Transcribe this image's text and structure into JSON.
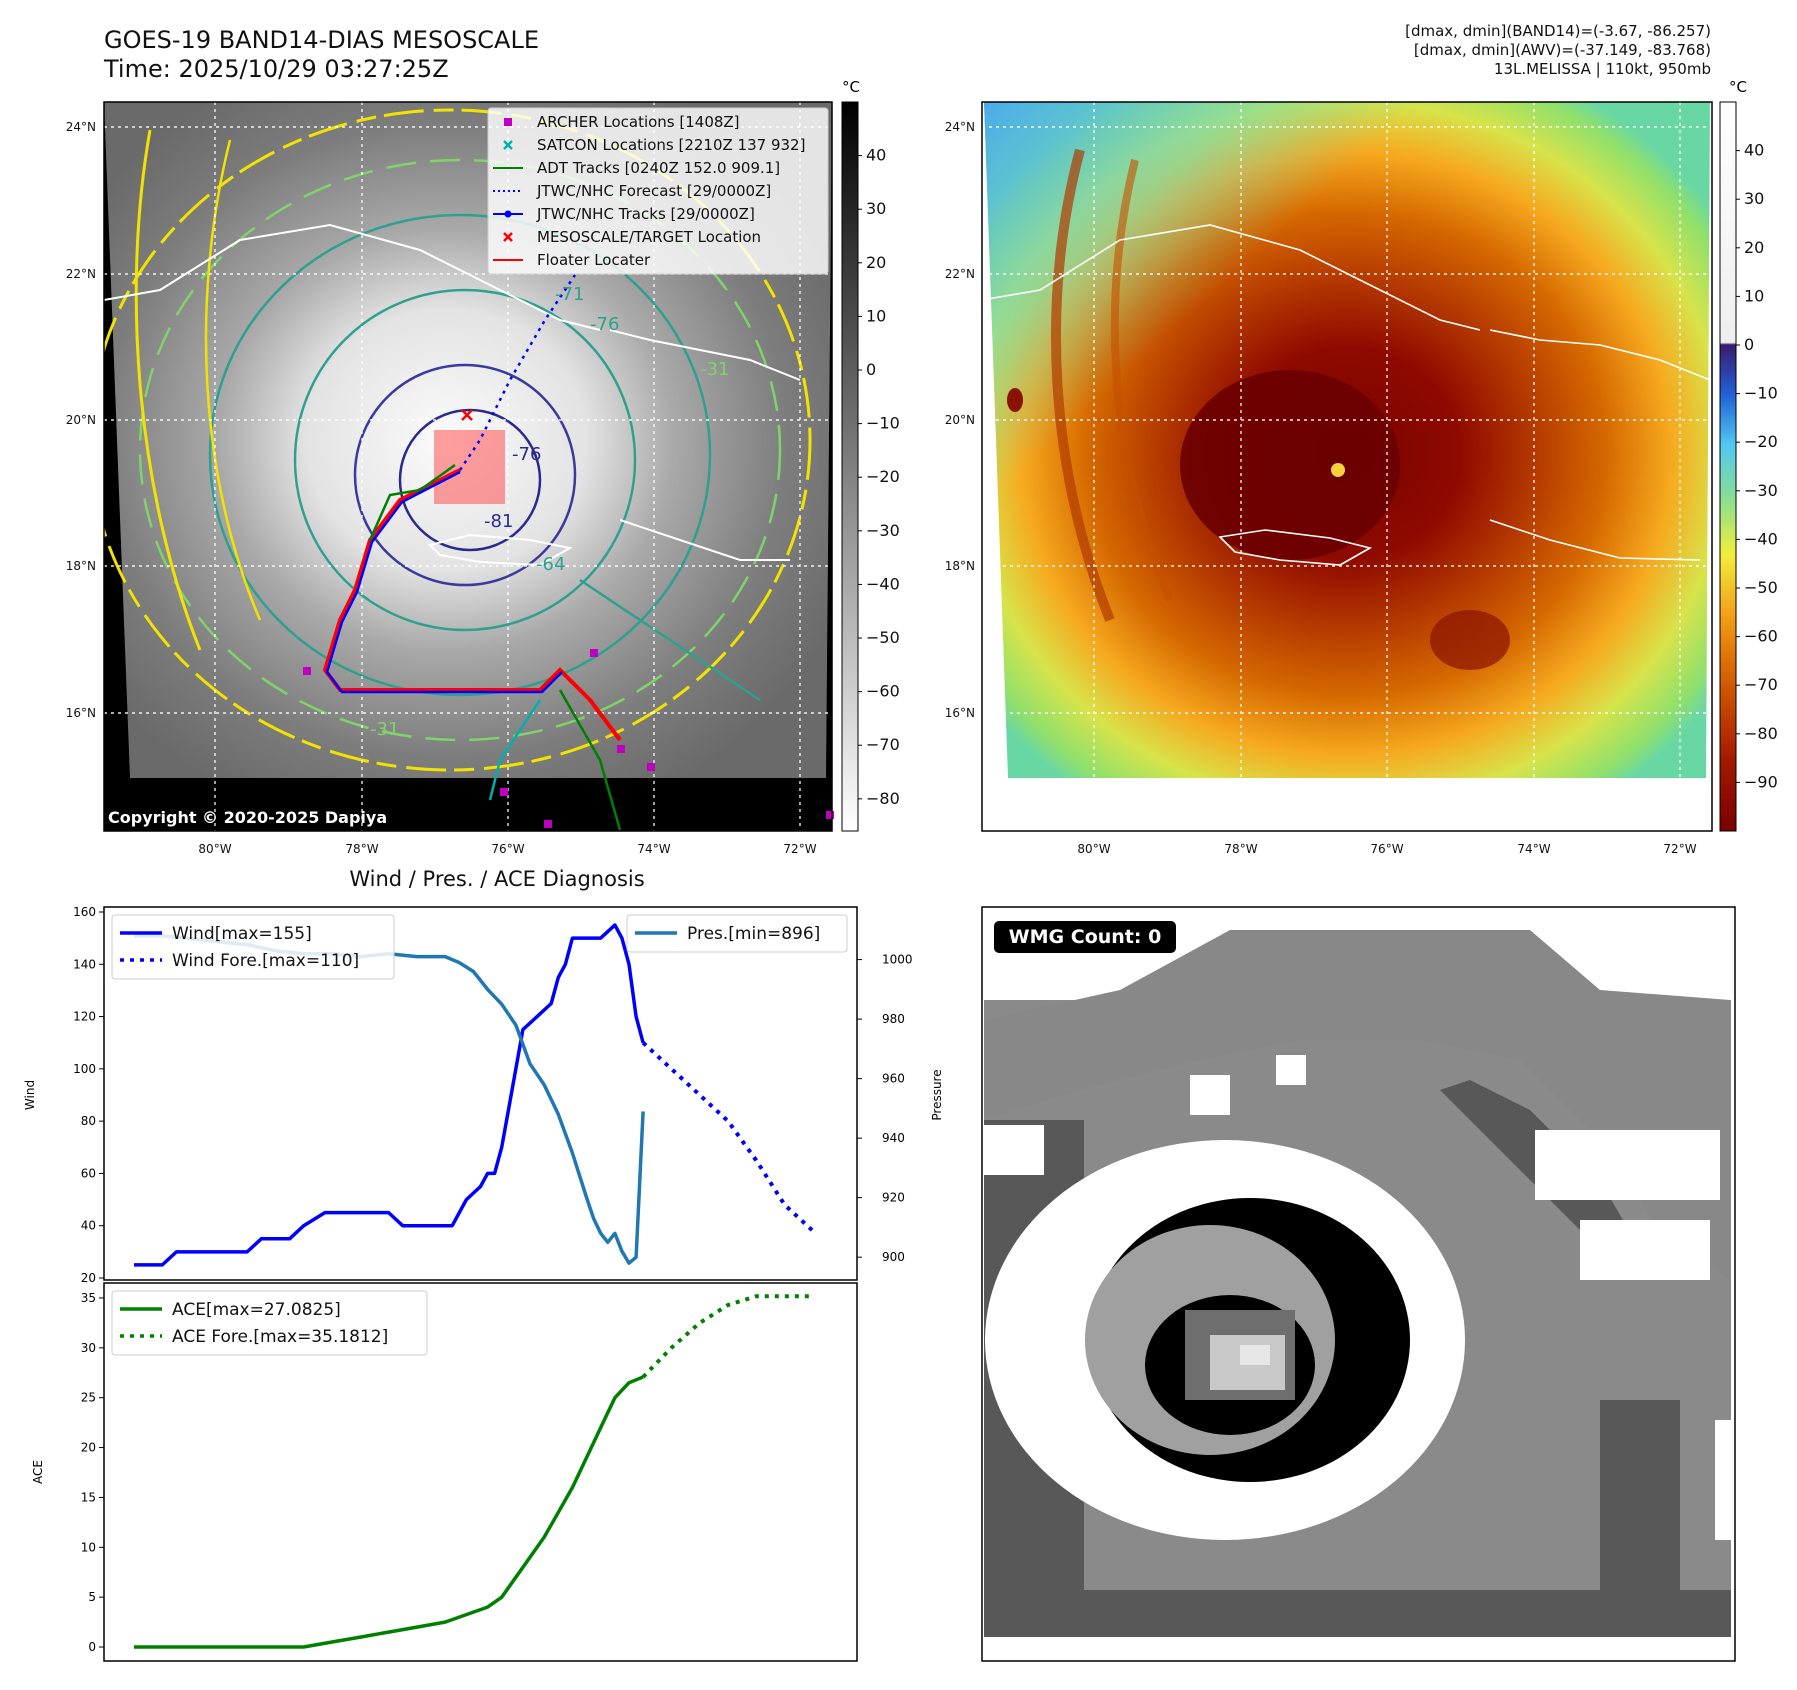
{
  "header": {
    "title_line1": "GOES-19 BAND14-DIAS MESOSCALE",
    "title_line2": "Time: 2025/10/29 03:27:25Z",
    "stats_line1": "[dmax, dmin](BAND14)=(-3.67, -86.257)",
    "stats_line2": "[dmax, dmin](AWV)=(-37.149, -83.768)",
    "stats_line3": "13L.MELISSA | 110kt, 950mb"
  },
  "ir_map": {
    "lat_labels": [
      "24°N",
      "22°N",
      "20°N",
      "18°N",
      "16°N"
    ],
    "lon_labels": [
      "80°W",
      "78°W",
      "76°W",
      "74°W",
      "72°W"
    ],
    "copyright": "Copyright © 2020-2025 Dapiya",
    "contour_labels": [
      "-76",
      "-81",
      "-76",
      "-64",
      "-31",
      "-31",
      "-71"
    ],
    "legend": [
      {
        "label": "ARCHER Locations [1408Z]",
        "color": "#c000c0",
        "marker": "square"
      },
      {
        "label": "SATCON Locations [2210Z 137 932]",
        "color": "#00b0b0",
        "marker": "x"
      },
      {
        "label": "ADT Tracks [0240Z 152.0 909.1]",
        "color": "#008000",
        "marker": "line"
      },
      {
        "label": "JTWC/NHC Forecast [29/0000Z]",
        "color": "#0000ff",
        "marker": "dotted"
      },
      {
        "label": "JTWC/NHC Tracks [29/0000Z]",
        "color": "#0000ff",
        "marker": "line-dot"
      },
      {
        "label": "MESOSCALE/TARGET Location",
        "color": "#ff0000",
        "marker": "x"
      },
      {
        "label": "Floater Locater",
        "color": "#ff0000",
        "marker": "line"
      }
    ],
    "colorbar_unit": "°C",
    "colorbar_ticks": [
      "40",
      "30",
      "20",
      "10",
      "0",
      "−10",
      "−20",
      "−30",
      "−40",
      "−50",
      "−60",
      "−70",
      "−80"
    ]
  },
  "wv_map": {
    "lat_labels": [
      "24°N",
      "22°N",
      "20°N",
      "18°N",
      "16°N"
    ],
    "lon_labels": [
      "80°W",
      "78°W",
      "76°W",
      "74°W",
      "72°W"
    ],
    "colorbar_unit": "°C",
    "colorbar_ticks": [
      "40",
      "30",
      "20",
      "10",
      "0",
      "−10",
      "−20",
      "−30",
      "−40",
      "−50",
      "−60",
      "−70",
      "−80",
      "−90"
    ]
  },
  "wmg": {
    "badge": "WMG Count: 0"
  },
  "chart_data": [
    {
      "type": "line",
      "title": "Wind / Pres. / ACE Diagnosis",
      "ylabel": "Wind",
      "ylabel_right": "Pressure",
      "ylim": [
        20,
        160
      ],
      "ylim_right": [
        893,
        1016
      ],
      "yticks": [
        20,
        40,
        60,
        80,
        100,
        120,
        140,
        160
      ],
      "yticks_right": [
        900,
        920,
        940,
        960,
        980,
        1000
      ],
      "xlim": [
        0,
        98
      ],
      "series": [
        {
          "name": "Wind[max=155]",
          "axis": "left",
          "color": "#0000ff",
          "style": "solid",
          "x": [
            0,
            4,
            6,
            10,
            16,
            18,
            22,
            24,
            27,
            29,
            32,
            36,
            38,
            40,
            43,
            45,
            47,
            49,
            50,
            51,
            52,
            53,
            55,
            57,
            59,
            60,
            61,
            62,
            64,
            66,
            68,
            69,
            70,
            71,
            72
          ],
          "y": [
            25,
            25,
            30,
            30,
            30,
            35,
            35,
            40,
            45,
            45,
            45,
            45,
            40,
            40,
            40,
            40,
            50,
            55,
            60,
            60,
            70,
            85,
            115,
            120,
            125,
            135,
            140,
            150,
            150,
            150,
            155,
            150,
            140,
            120,
            110
          ]
        },
        {
          "name": "Wind Fore.[max=110]",
          "axis": "left",
          "color": "#0000ff",
          "style": "dotted",
          "x": [
            72,
            76,
            80,
            84,
            88,
            92,
            96
          ],
          "y": [
            110,
            100,
            90,
            80,
            65,
            48,
            38
          ]
        },
        {
          "name": "Pres.[min=896]",
          "axis": "right",
          "color": "#1f77b4",
          "style": "solid",
          "x": [
            0,
            4,
            8,
            12,
            16,
            20,
            24,
            28,
            32,
            36,
            40,
            44,
            46,
            48,
            50,
            52,
            54,
            56,
            58,
            60,
            62,
            64,
            65,
            66,
            67,
            68,
            69,
            70,
            71,
            72
          ],
          "y": [
            1008,
            1008,
            1007,
            1006,
            1005,
            1003,
            1002,
            1002,
            1001,
            1002,
            1001,
            1001,
            999,
            996,
            990,
            985,
            978,
            965,
            958,
            948,
            935,
            920,
            913,
            908,
            905,
            908,
            902,
            898,
            900,
            949
          ]
        }
      ]
    },
    {
      "type": "line",
      "ylabel": "ACE",
      "ylim": [
        -1,
        36
      ],
      "yticks": [
        0,
        5,
        10,
        15,
        20,
        25,
        30,
        35
      ],
      "xlim": [
        0,
        98
      ],
      "series": [
        {
          "name": "ACE[max=27.0825]",
          "color": "#008000",
          "style": "solid",
          "x": [
            0,
            10,
            20,
            24,
            28,
            32,
            36,
            40,
            44,
            46,
            48,
            50,
            52,
            54,
            56,
            58,
            60,
            62,
            64,
            66,
            68,
            70,
            72
          ],
          "y": [
            0,
            0,
            0,
            0,
            0.5,
            1,
            1.5,
            2,
            2.5,
            3,
            3.5,
            4,
            5,
            7,
            9,
            11,
            13.5,
            16,
            19,
            22,
            25,
            26.5,
            27.08
          ]
        },
        {
          "name": "ACE Fore.[max=35.1812]",
          "color": "#008000",
          "style": "dotted",
          "x": [
            72,
            76,
            80,
            84,
            88,
            92,
            96
          ],
          "y": [
            27.08,
            30,
            32.5,
            34.3,
            35.18,
            35.18,
            35.18
          ]
        }
      ]
    }
  ]
}
